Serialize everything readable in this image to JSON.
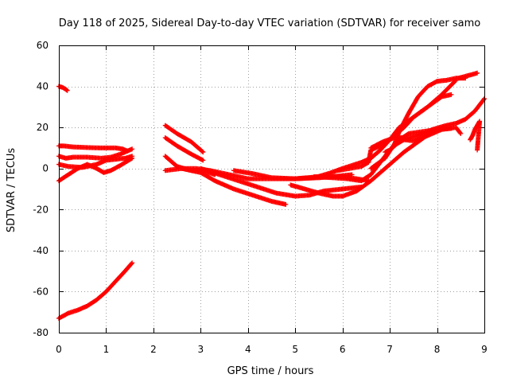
{
  "chart_data": {
    "type": "scatter",
    "title": "Day 118 of 2025, Sidereal Day-to-day VTEC variation (SDTVAR) for receiver samo",
    "xlabel": "GPS time / hours",
    "ylabel": "SDTVAR / TECUs",
    "xlim": [
      0,
      9
    ],
    "ylim": [
      -80,
      60
    ],
    "xticks": [
      0,
      1,
      2,
      3,
      4,
      5,
      6,
      7,
      8,
      9
    ],
    "yticks": [
      -80,
      -60,
      -40,
      -20,
      0,
      20,
      40,
      60
    ],
    "grid": true,
    "marker": "+",
    "color": "#ff0000",
    "series": [
      {
        "name": "s1",
        "points": [
          [
            0.0,
            40
          ],
          [
            0.08,
            39.5
          ],
          [
            0.15,
            38.5
          ],
          [
            0.18,
            38
          ]
        ]
      },
      {
        "name": "s2",
        "points": [
          [
            0.0,
            11
          ],
          [
            0.1,
            11
          ],
          [
            0.3,
            10.5
          ],
          [
            0.6,
            10.2
          ],
          [
            0.9,
            10
          ],
          [
            1.2,
            10
          ],
          [
            1.35,
            9.5
          ],
          [
            1.45,
            8.5
          ]
        ]
      },
      {
        "name": "s3",
        "points": [
          [
            0.0,
            6
          ],
          [
            0.15,
            5
          ],
          [
            0.3,
            5.5
          ],
          [
            0.6,
            5.5
          ],
          [
            0.9,
            5
          ],
          [
            1.1,
            5.5
          ],
          [
            1.3,
            7
          ],
          [
            1.45,
            8.5
          ],
          [
            1.55,
            9.5
          ]
        ]
      },
      {
        "name": "s4",
        "points": [
          [
            0.0,
            2
          ],
          [
            0.2,
            1
          ],
          [
            0.5,
            0.5
          ],
          [
            0.8,
            2
          ],
          [
            1.0,
            4
          ],
          [
            1.2,
            4.5
          ],
          [
            1.4,
            5
          ],
          [
            1.55,
            6
          ]
        ]
      },
      {
        "name": "s5",
        "points": [
          [
            0.0,
            -6
          ],
          [
            0.2,
            -3
          ],
          [
            0.4,
            0
          ],
          [
            0.6,
            2
          ],
          [
            0.8,
            0
          ],
          [
            0.95,
            -2
          ],
          [
            1.1,
            -1
          ],
          [
            1.3,
            1.5
          ],
          [
            1.55,
            5
          ]
        ]
      },
      {
        "name": "s6",
        "points": [
          [
            0.0,
            -73
          ],
          [
            0.2,
            -70.5
          ],
          [
            0.4,
            -69
          ],
          [
            0.6,
            -67
          ],
          [
            0.8,
            -64
          ],
          [
            1.0,
            -60
          ],
          [
            1.2,
            -55
          ],
          [
            1.4,
            -50
          ],
          [
            1.55,
            -46
          ]
        ]
      },
      {
        "name": "s7",
        "points": [
          [
            2.25,
            21
          ],
          [
            2.5,
            17
          ],
          [
            2.8,
            13
          ],
          [
            3.05,
            8
          ]
        ]
      },
      {
        "name": "s8",
        "points": [
          [
            2.25,
            15
          ],
          [
            2.5,
            11
          ],
          [
            2.8,
            7
          ],
          [
            3.05,
            4
          ]
        ]
      },
      {
        "name": "s9",
        "points": [
          [
            2.25,
            6
          ],
          [
            2.5,
            1
          ],
          [
            2.8,
            -1
          ],
          [
            3.05,
            -1
          ],
          [
            3.3,
            -3
          ]
        ]
      },
      {
        "name": "s10",
        "points": [
          [
            2.25,
            -1
          ],
          [
            2.6,
            0
          ],
          [
            2.9,
            0
          ],
          [
            3.2,
            -1
          ],
          [
            3.6,
            -3
          ],
          [
            4.0,
            -5
          ],
          [
            4.5,
            -5
          ],
          [
            5.0,
            -5
          ],
          [
            5.5,
            -4
          ],
          [
            6.0,
            -4
          ],
          [
            6.3,
            -5
          ],
          [
            6.55,
            -6
          ]
        ]
      },
      {
        "name": "s11",
        "points": [
          [
            2.6,
            0
          ],
          [
            3.0,
            -2
          ],
          [
            3.3,
            -6
          ],
          [
            3.7,
            -10
          ],
          [
            4.1,
            -13
          ],
          [
            4.5,
            -16
          ],
          [
            4.8,
            -17.5
          ]
        ]
      },
      {
        "name": "s12",
        "points": [
          [
            3.0,
            0
          ],
          [
            3.4,
            -3
          ],
          [
            3.8,
            -6
          ],
          [
            4.2,
            -9
          ],
          [
            4.6,
            -12
          ],
          [
            5.0,
            -13.5
          ],
          [
            5.3,
            -13
          ],
          [
            5.6,
            -11
          ],
          [
            6.0,
            -10
          ],
          [
            6.4,
            -9
          ]
        ]
      },
      {
        "name": "s13",
        "points": [
          [
            3.7,
            -1
          ],
          [
            4.1,
            -2.5
          ],
          [
            4.5,
            -4.5
          ],
          [
            5.0,
            -5
          ],
          [
            5.5,
            -4.5
          ],
          [
            6.0,
            -3.5
          ],
          [
            6.2,
            -3
          ]
        ]
      },
      {
        "name": "s14",
        "points": [
          [
            4.9,
            -8
          ],
          [
            5.2,
            -10
          ],
          [
            5.5,
            -12
          ],
          [
            5.8,
            -13.5
          ],
          [
            6.0,
            -13.5
          ],
          [
            6.3,
            -11
          ],
          [
            6.6,
            -6
          ],
          [
            7.0,
            2
          ],
          [
            7.3,
            8
          ],
          [
            7.6,
            13
          ],
          [
            7.9,
            18
          ]
        ]
      },
      {
        "name": "s15",
        "points": [
          [
            5.0,
            -5
          ],
          [
            5.4,
            -4.5
          ],
          [
            5.7,
            -2.5
          ],
          [
            6.0,
            0
          ],
          [
            6.4,
            3
          ],
          [
            6.6,
            5
          ],
          [
            6.8,
            9
          ],
          [
            7.0,
            14
          ],
          [
            7.2,
            20
          ],
          [
            7.5,
            25
          ],
          [
            7.8,
            30
          ],
          [
            8.1,
            36
          ],
          [
            8.4,
            43
          ]
        ]
      },
      {
        "name": "s16",
        "points": [
          [
            5.4,
            -4
          ],
          [
            5.8,
            -4.5
          ],
          [
            6.1,
            -5
          ],
          [
            6.4,
            -6
          ],
          [
            6.6,
            -3
          ],
          [
            6.8,
            3
          ],
          [
            7.0,
            9
          ],
          [
            7.2,
            14
          ],
          [
            7.4,
            17
          ],
          [
            7.7,
            18
          ],
          [
            8.0,
            19
          ],
          [
            8.3,
            19.5
          ]
        ]
      },
      {
        "name": "s17",
        "points": [
          [
            5.9,
            -1
          ],
          [
            6.15,
            0
          ],
          [
            6.4,
            1
          ],
          [
            6.55,
            3
          ],
          [
            6.6,
            9
          ],
          [
            6.9,
            12
          ],
          [
            7.1,
            16
          ],
          [
            7.3,
            20
          ],
          [
            7.5,
            25
          ],
          [
            7.8,
            30
          ],
          [
            8.1,
            35
          ],
          [
            8.3,
            36
          ]
        ]
      },
      {
        "name": "s18",
        "points": [
          [
            6.6,
            10
          ],
          [
            6.85,
            13
          ],
          [
            7.1,
            15
          ],
          [
            7.4,
            15
          ],
          [
            7.6,
            16
          ],
          [
            7.9,
            19
          ],
          [
            8.2,
            21
          ],
          [
            8.4,
            22
          ],
          [
            8.6,
            24
          ],
          [
            8.8,
            28
          ],
          [
            9.0,
            34
          ]
        ]
      },
      {
        "name": "s19",
        "points": [
          [
            6.9,
            8
          ],
          [
            7.0,
            9
          ],
          [
            7.15,
            12
          ],
          [
            7.3,
            14
          ],
          [
            7.5,
            13.5
          ],
          [
            7.8,
            16
          ],
          [
            8.1,
            19
          ],
          [
            8.4,
            20
          ],
          [
            8.5,
            17
          ]
        ]
      },
      {
        "name": "s20",
        "points": [
          [
            6.6,
            0
          ],
          [
            6.9,
            5
          ],
          [
            7.1,
            12
          ],
          [
            7.2,
            18
          ],
          [
            7.4,
            27
          ],
          [
            7.6,
            35
          ],
          [
            7.8,
            40
          ],
          [
            8.0,
            42.5
          ],
          [
            8.2,
            43
          ],
          [
            8.4,
            44
          ],
          [
            8.6,
            44
          ]
        ]
      },
      {
        "name": "s21",
        "points": [
          [
            8.45,
            44
          ],
          [
            8.85,
            46.5
          ]
        ]
      },
      {
        "name": "s22",
        "points": [
          [
            8.7,
            14
          ],
          [
            8.75,
            16
          ],
          [
            8.8,
            19
          ],
          [
            8.85,
            21
          ],
          [
            8.9,
            23
          ],
          [
            8.85,
            9
          ]
        ]
      }
    ]
  }
}
